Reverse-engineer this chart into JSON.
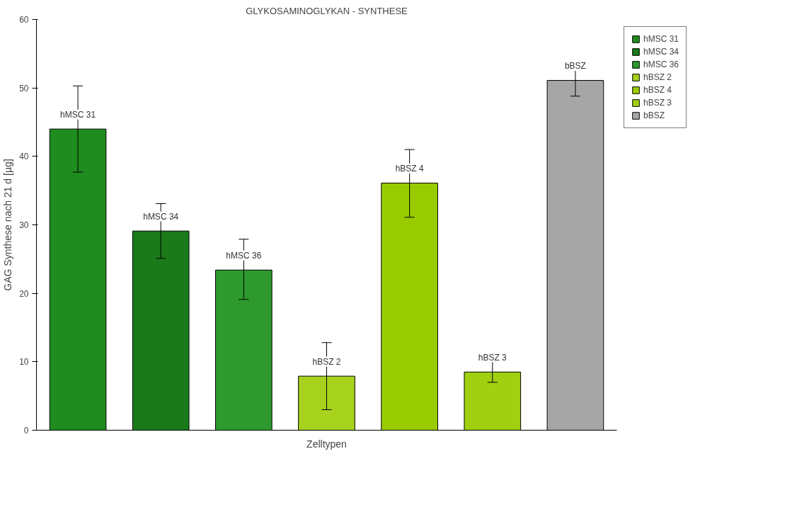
{
  "chart_data": {
    "type": "bar",
    "title": "GLYKOSAMINOGLYKAN - SYNTHESE",
    "xlabel": "Zelltypen",
    "ylabel": "GAG Synthese nach 21 d [µg]",
    "categories": [
      null,
      null,
      null,
      null,
      null,
      null,
      null
    ],
    "series": [
      {
        "name": "hMSC 31",
        "color": "#1e8c1e",
        "values": [
          44,
          null,
          null,
          null,
          null,
          null,
          null
        ],
        "errors": [
          [
            37.7,
            50.3
          ],
          null,
          null,
          null,
          null,
          null,
          null
        ]
      },
      {
        "name": "hMSC 34",
        "color": "#1a7a1a",
        "values": [
          null,
          29.1,
          null,
          null,
          null,
          null,
          null
        ],
        "errors": [
          null,
          [
            25.1,
            33.1
          ],
          null,
          null,
          null,
          null,
          null
        ]
      },
      {
        "name": "hMSC 36",
        "color": "#2e9a2e",
        "values": [
          null,
          null,
          23.4,
          null,
          null,
          null,
          null
        ],
        "errors": [
          null,
          null,
          [
            19.1,
            27.9
          ],
          null,
          null,
          null,
          null
        ]
      },
      {
        "name": "hBSZ 2",
        "color": "#a6d21e",
        "values": [
          null,
          null,
          null,
          7.9,
          null,
          null,
          null
        ],
        "errors": [
          null,
          null,
          null,
          [
            3.0,
            12.8
          ],
          null,
          null,
          null
        ]
      },
      {
        "name": "hBSZ 4",
        "color": "#99cc00",
        "values": [
          null,
          null,
          null,
          null,
          36.1,
          null,
          null
        ],
        "errors": [
          null,
          null,
          null,
          null,
          [
            31.1,
            41.0
          ],
          null,
          null
        ]
      },
      {
        "name": "hBSZ 3",
        "color": "#a0d010",
        "values": [
          null,
          null,
          null,
          null,
          null,
          8.5,
          null
        ],
        "errors": [
          null,
          null,
          null,
          null,
          null,
          [
            7.0,
            10.0
          ],
          null
        ]
      },
      {
        "name": "bBSZ",
        "color": "#a6a6a6",
        "values": [
          null,
          null,
          null,
          null,
          null,
          null,
          51.1
        ],
        "errors": [
          null,
          null,
          null,
          null,
          null,
          null,
          [
            48.8,
            53.1
          ]
        ]
      }
    ],
    "ylim": [
      0,
      60
    ],
    "yticks": [
      0,
      10,
      20,
      30,
      40,
      50,
      60
    ],
    "grid": false,
    "legend": "top right"
  }
}
